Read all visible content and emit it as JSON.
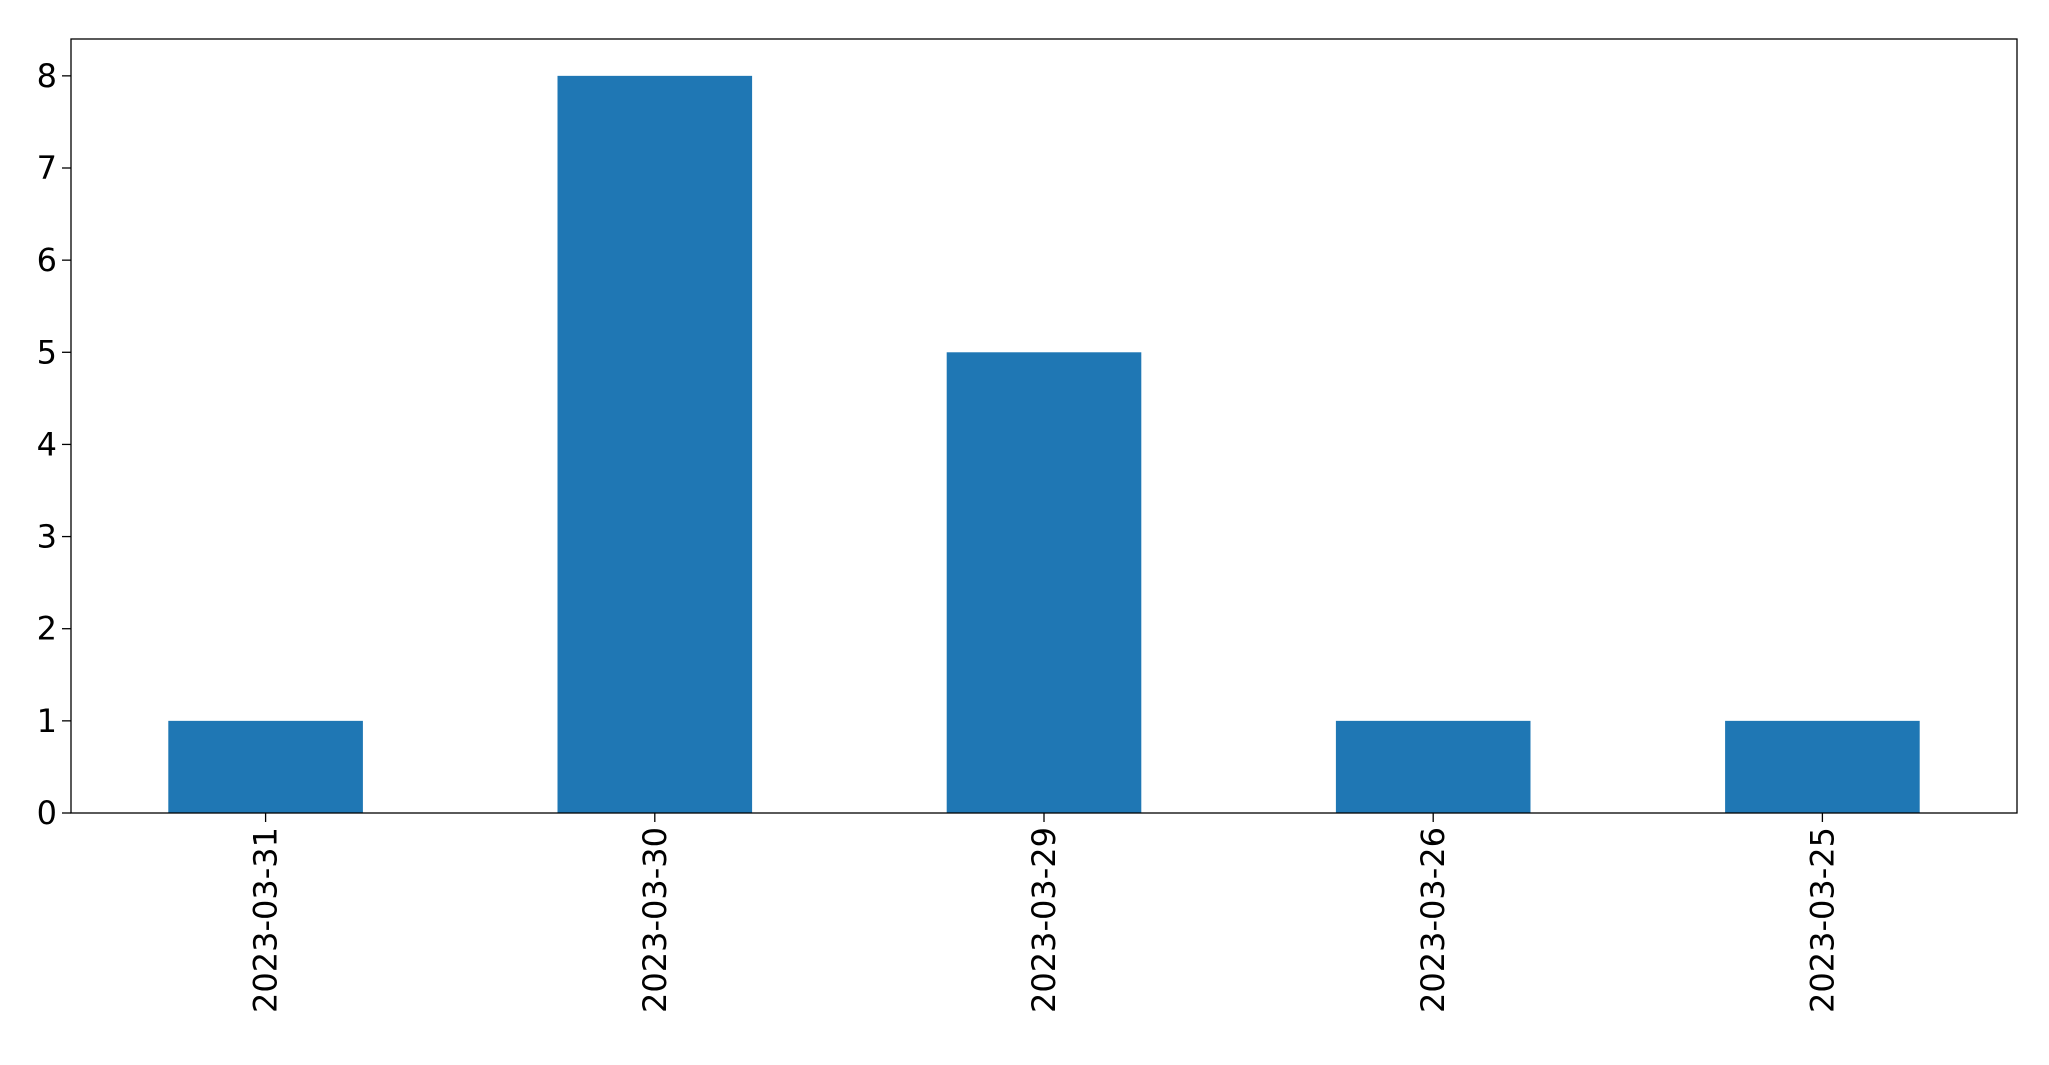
{
  "chart_data": {
    "type": "bar",
    "title": "",
    "xlabel": "",
    "ylabel": "",
    "categories": [
      "2023-03-31",
      "2023-03-30",
      "2023-03-29",
      "2023-03-26",
      "2023-03-25"
    ],
    "values": [
      1,
      8,
      5,
      1,
      1
    ],
    "ylim": [
      0,
      8.4
    ],
    "yticks": [
      0,
      1,
      2,
      3,
      4,
      5,
      6,
      7,
      8
    ],
    "grid": false,
    "legend": "none",
    "bar_color": "#1f77b4",
    "xtick_rotation": "vertical"
  }
}
